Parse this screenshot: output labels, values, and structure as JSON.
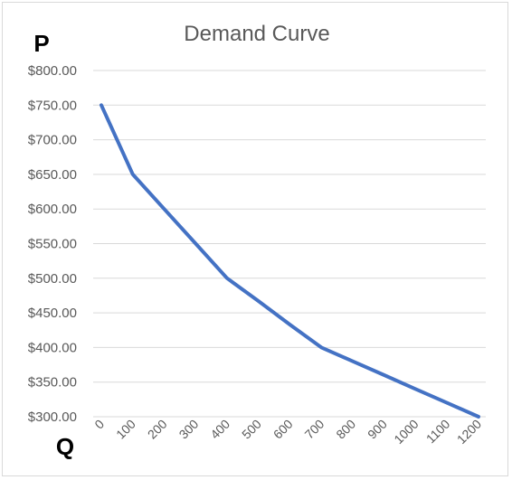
{
  "chart_data": {
    "type": "line",
    "title": "Demand Curve",
    "ylabel": "P",
    "xlabel": "Q",
    "x": [
      0,
      100,
      200,
      300,
      400,
      500,
      600,
      700,
      800,
      900,
      1000,
      1100,
      1200
    ],
    "x_tick_labels": [
      "0",
      "100",
      "200",
      "300",
      "400",
      "500",
      "600",
      "700",
      "800",
      "900",
      "1000",
      "1100",
      "1200"
    ],
    "series": [
      {
        "values": [
          750,
          650,
          600,
          550,
          500,
          467,
          433,
          400,
          380,
          360,
          340,
          320,
          300
        ]
      }
    ],
    "ylim": [
      300,
      800
    ],
    "y_ticks": [
      300,
      350,
      400,
      450,
      500,
      550,
      600,
      650,
      700,
      750,
      800
    ],
    "y_tick_labels": [
      "$300.00",
      "$350.00",
      "$400.00",
      "$450.00",
      "$500.00",
      "$550.00",
      "$600.00",
      "$650.00",
      "$700.00",
      "$750.00",
      "$800.00"
    ],
    "grid": true,
    "legend": "none",
    "colors": {
      "line": "#4472c4",
      "grid": "#d9d9d9",
      "text": "#595959"
    }
  }
}
